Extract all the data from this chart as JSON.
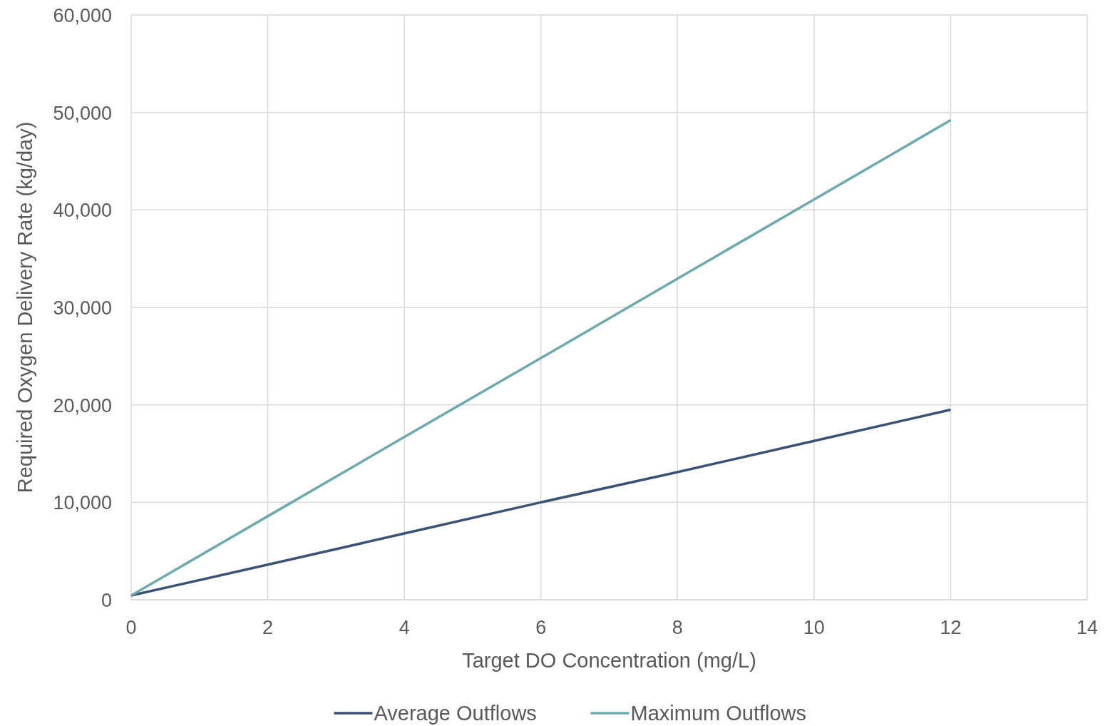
{
  "chart_data": {
    "type": "line",
    "xlabel": "Target DO Concentration (mg/L)",
    "ylabel": "Required Oxygen Delivery Rate (kg/day)",
    "x": [
      0,
      2,
      4,
      6,
      8,
      10,
      12
    ],
    "series": [
      {
        "name": "Average Outflows",
        "color": "#3b5272",
        "values": [
          440,
          3600,
          6800,
          10000,
          13100,
          16300,
          19500
        ]
      },
      {
        "name": "Maximum Outflows",
        "color": "#6fa9ae",
        "values": [
          440,
          8570,
          16700,
          24800,
          32950,
          41070,
          49200
        ]
      }
    ],
    "xlim": [
      0,
      14
    ],
    "xticks": [
      0,
      2,
      4,
      6,
      8,
      10,
      12,
      14
    ],
    "ylim": [
      0,
      60000
    ],
    "yticks": [
      0,
      {
        "value": 10000,
        "label": "10,000"
      },
      {
        "value": 20000,
        "label": "20,000"
      },
      {
        "value": 30000,
        "label": "30,000"
      },
      {
        "value": 40000,
        "label": "40,000"
      },
      {
        "value": 50000,
        "label": "50,000"
      },
      {
        "value": 60000,
        "label": "60,000"
      }
    ],
    "grid": true,
    "legend": "bottom",
    "marker": "none",
    "line_style": "solid"
  }
}
